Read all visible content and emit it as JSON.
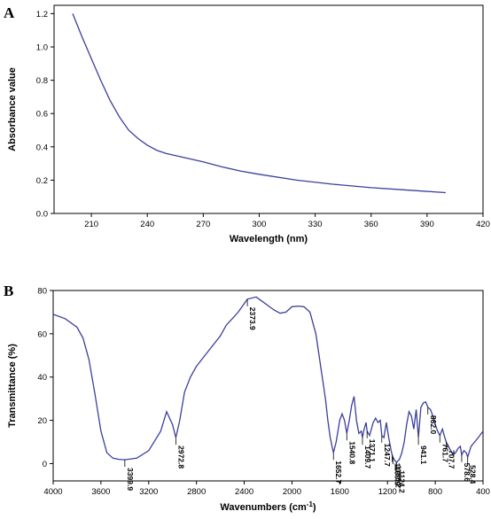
{
  "chart_data": [
    {
      "type": "line",
      "panel_label": "A",
      "xlabel": "Wavelength (nm)",
      "ylabel": "Absorbance value",
      "xlim": [
        190,
        420
      ],
      "ylim": [
        0.0,
        1.25
      ],
      "xticks": [
        210,
        240,
        270,
        300,
        330,
        360,
        390,
        420
      ],
      "yticks": [
        0.0,
        0.2,
        0.4,
        0.6,
        0.8,
        1.0,
        1.2
      ],
      "ytick_labels": [
        "0.0",
        "0.2",
        "0.4",
        "0.6",
        "0.8",
        "1.0",
        "1.2"
      ],
      "series": [
        {
          "x": [
            200,
            205,
            210,
            215,
            220,
            225,
            230,
            235,
            240,
            245,
            250,
            260,
            270,
            280,
            290,
            300,
            320,
            340,
            360,
            380,
            400
          ],
          "y": [
            1.2,
            1.06,
            0.93,
            0.8,
            0.68,
            0.58,
            0.5,
            0.45,
            0.41,
            0.38,
            0.36,
            0.335,
            0.31,
            0.28,
            0.255,
            0.235,
            0.2,
            0.175,
            0.155,
            0.14,
            0.125
          ]
        }
      ],
      "colors": {
        "line": "#3b3f9c"
      }
    },
    {
      "type": "line",
      "panel_label": "B",
      "xlabel": "Wavenumbers (cm",
      "xlabel_superscript": "-1",
      "xlabel_suffix": ")",
      "ylabel": "Transmittance (%)",
      "xlim": [
        4000,
        400
      ],
      "ylim": [
        -8,
        80
      ],
      "x_reversed": true,
      "xticks": [
        4000,
        3600,
        3200,
        2800,
        2400,
        2000,
        1600,
        1200,
        800,
        400
      ],
      "yticks": [
        0,
        20,
        40,
        60,
        80
      ],
      "series": [
        {
          "x": [
            4000,
            3900,
            3800,
            3750,
            3700,
            3650,
            3600,
            3550,
            3500,
            3450,
            3399.9,
            3300,
            3200,
            3100,
            3050,
            3000,
            2972.8,
            2940,
            2900,
            2850,
            2800,
            2700,
            2600,
            2550,
            2500,
            2450,
            2400,
            2373.9,
            2300,
            2250,
            2200,
            2150,
            2100,
            2050,
            2000,
            1950,
            1900,
            1850,
            1800,
            1760,
            1720,
            1700,
            1680,
            1652.7,
            1630,
            1600,
            1580,
            1560,
            1540.8,
            1520,
            1500,
            1480,
            1460,
            1440,
            1420,
            1409.7,
            1400,
            1380,
            1371.1,
            1350,
            1320,
            1300,
            1280,
            1260,
            1247.7,
            1230,
            1210,
            1190,
            1170,
            1160.9,
            1155.2,
            1140,
            1124.2,
            1100,
            1080,
            1060,
            1040,
            1020,
            1000,
            980,
            960,
            941.1,
            920,
            900,
            880,
            862.0,
            840,
            820,
            800,
            780,
            761.7,
            740,
            720,
            707.7,
            690,
            670,
            650,
            630,
            610,
            590,
            578.6,
            560,
            540,
            528.4,
            500,
            470,
            440,
            400
          ],
          "y": [
            69,
            67,
            63,
            58,
            48,
            32,
            15,
            5,
            2.5,
            2,
            1.8,
            2.5,
            6,
            15,
            24,
            18,
            12,
            20,
            33,
            40,
            45,
            52,
            59,
            64,
            67,
            70,
            74,
            76,
            77,
            75,
            73,
            71,
            69.5,
            70,
            72.5,
            72.8,
            72.5,
            70,
            60,
            45,
            30,
            20,
            12,
            5,
            10,
            20,
            23,
            20,
            14,
            20,
            27,
            31,
            20,
            14,
            15,
            12,
            15,
            19,
            15,
            13,
            19,
            21,
            19,
            20,
            13,
            12,
            19,
            12,
            6,
            4,
            3,
            1.5,
            0.5,
            2,
            5,
            10,
            18,
            24,
            22,
            16,
            25,
            12,
            26,
            28,
            28.5,
            26,
            25,
            22,
            18,
            15,
            13,
            16,
            12,
            10,
            8,
            6,
            4,
            5,
            7,
            8,
            4,
            6,
            5,
            3,
            8,
            10,
            12,
            15
          ]
        }
      ],
      "peak_labels": [
        "3399.9",
        "2972.8",
        "2373.9",
        "1652.7",
        "1540.8",
        "1409.7",
        "1371.1",
        "1247.7",
        "1160.9",
        "1155.2",
        "1124.2",
        "941.1",
        "862.0",
        "761.7",
        "707.7",
        "578.6",
        "528.4"
      ],
      "colors": {
        "line": "#3b3f9c"
      }
    }
  ]
}
